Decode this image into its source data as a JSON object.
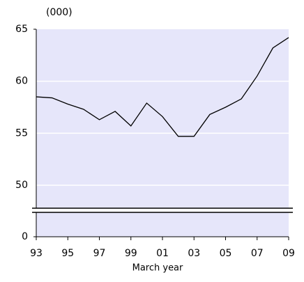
{
  "chart_data": {
    "type": "line",
    "unit_label": "(000)",
    "x_label": "March year",
    "categories": [
      "93",
      null,
      "95",
      null,
      "97",
      null,
      "99",
      null,
      "01",
      null,
      "03",
      null,
      "05",
      null,
      "07",
      null,
      "09"
    ],
    "values": [
      58.5,
      58.4,
      57.8,
      57.3,
      56.3,
      57.1,
      55.7,
      57.9,
      56.6,
      54.7,
      54.7,
      56.8,
      57.5,
      58.3,
      60.5,
      63.2,
      64.2
    ],
    "color": "#000000",
    "background": "#e6e6fa",
    "ylim": [
      0,
      65
    ],
    "yticks": [
      0,
      50,
      55,
      60,
      65
    ],
    "grid": true
  }
}
